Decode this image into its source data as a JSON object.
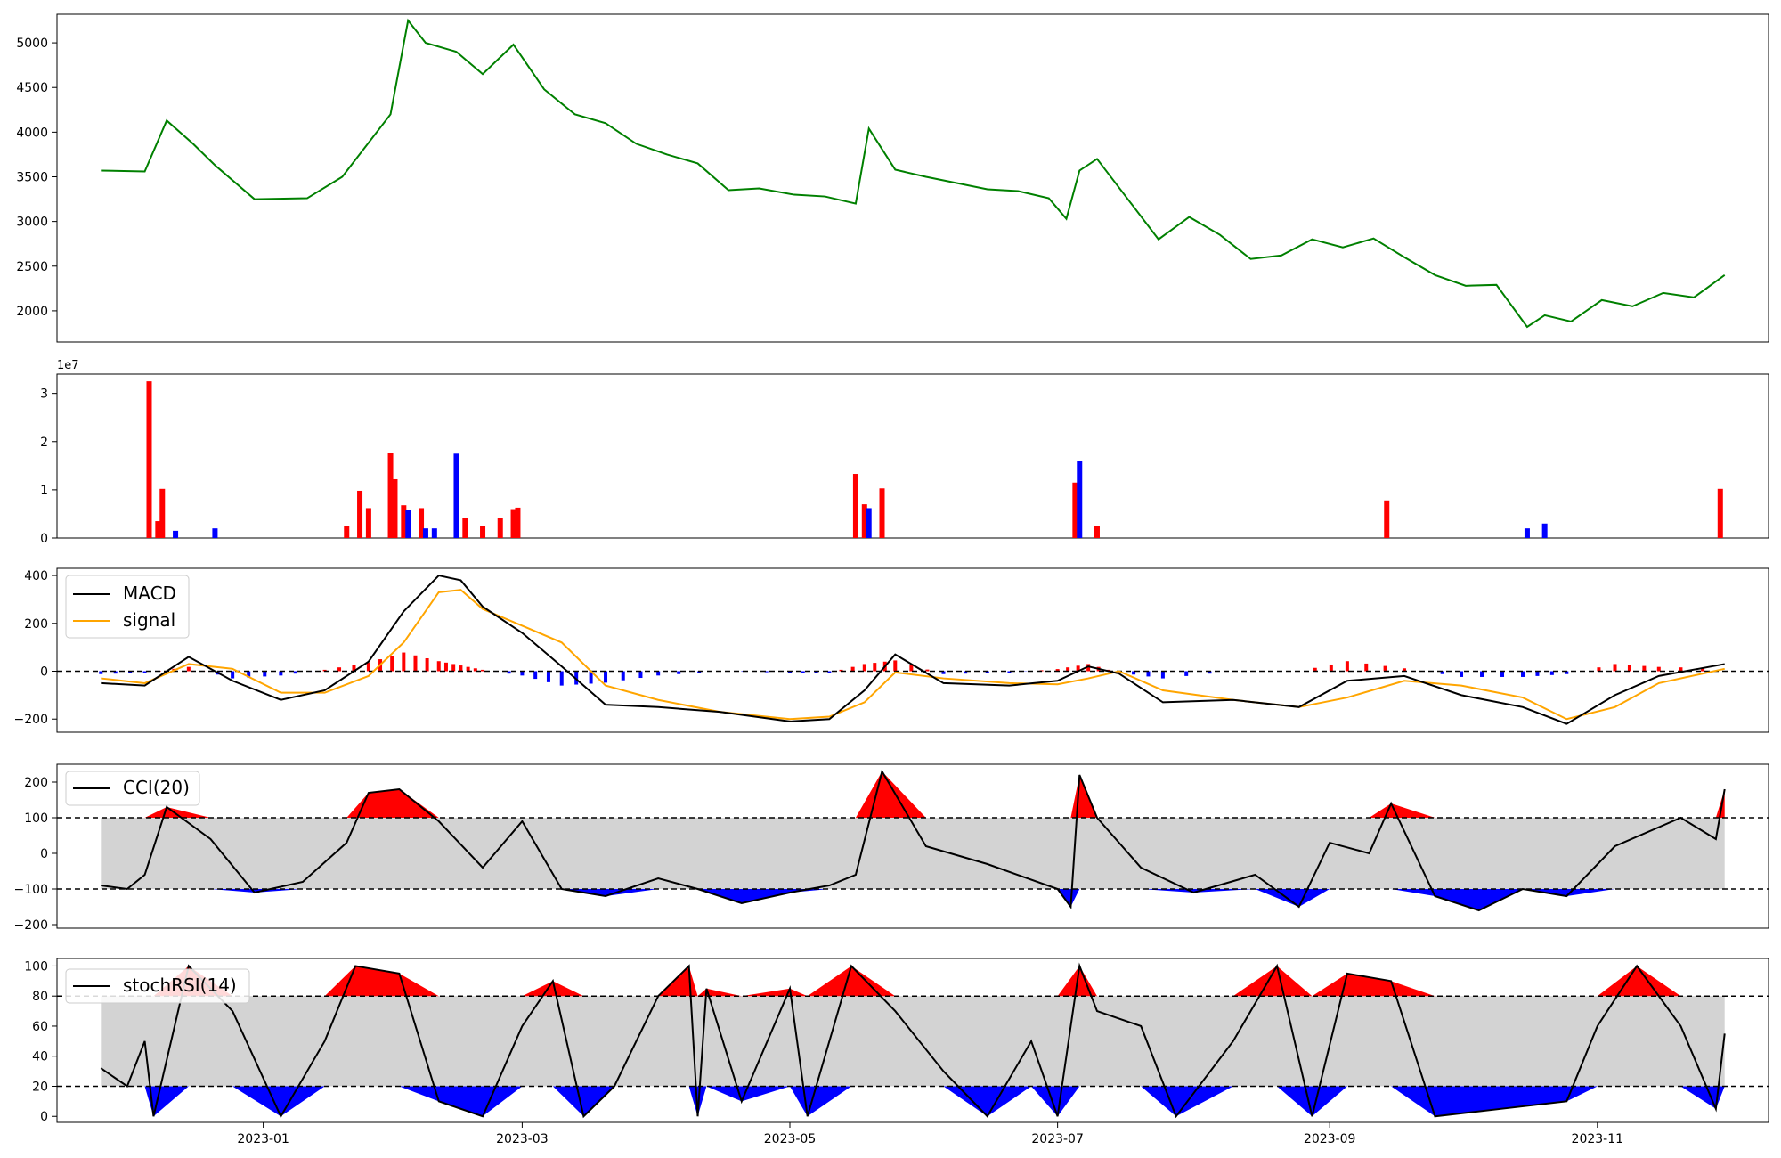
{
  "chart_data": [
    {
      "type": "line",
      "name": "price-panel",
      "ylim": [
        1650,
        5320
      ],
      "yticks": [
        2000,
        2500,
        3000,
        3500,
        4000,
        4500,
        5000
      ],
      "ytick_labels": [
        "2000",
        "2500",
        "3000",
        "3500",
        "4000",
        "4500",
        "5000"
      ],
      "x_dates": [
        "2022-11-25",
        "2022-12-05",
        "2022-12-10",
        "2022-12-16",
        "2022-12-21",
        "2022-12-30",
        "2023-01-11",
        "2023-01-19",
        "2023-01-30",
        "2023-02-03",
        "2023-02-07",
        "2023-02-14",
        "2023-02-20",
        "2023-02-27",
        "2023-03-06",
        "2023-03-13",
        "2023-03-20",
        "2023-03-27",
        "2023-04-03",
        "2023-04-10",
        "2023-04-17",
        "2023-04-24",
        "2023-05-02",
        "2023-05-09",
        "2023-05-16",
        "2023-05-19",
        "2023-05-25",
        "2023-06-01",
        "2023-06-08",
        "2023-06-15",
        "2023-06-22",
        "2023-06-29",
        "2023-07-03",
        "2023-07-06",
        "2023-07-10",
        "2023-07-17",
        "2023-07-24",
        "2023-07-31",
        "2023-08-07",
        "2023-08-14",
        "2023-08-21",
        "2023-08-28",
        "2023-09-04",
        "2023-09-11",
        "2023-09-18",
        "2023-09-25",
        "2023-10-02",
        "2023-10-09",
        "2023-10-16",
        "2023-10-20",
        "2023-10-26",
        "2023-11-02",
        "2023-11-09",
        "2023-11-16",
        "2023-11-23",
        "2023-11-30"
      ],
      "values": [
        3570,
        3560,
        4130,
        3870,
        3630,
        3250,
        3260,
        3500,
        4200,
        5250,
        5000,
        4900,
        4650,
        4980,
        4480,
        4200,
        4100,
        3870,
        3750,
        3650,
        3350,
        3370,
        3300,
        3280,
        3200,
        4040,
        3580,
        3500,
        3430,
        3360,
        3340,
        3260,
        3030,
        3570,
        3700,
        3250,
        2800,
        3050,
        2850,
        2580,
        2620,
        2800,
        2710,
        2810,
        2600,
        2400,
        2280,
        2290,
        1820,
        1950,
        1880,
        2120,
        2050,
        2200,
        2150,
        2400
      ],
      "color": "#008000"
    },
    {
      "type": "bar",
      "name": "volume-panel",
      "scale_label": "1e7",
      "ylim": [
        0,
        3.4
      ],
      "yticks": [
        0,
        1,
        2,
        3
      ],
      "ytick_labels": [
        "0",
        "1",
        "2",
        "3"
      ],
      "bars": [
        {
          "date": "2022-12-06",
          "value": 3.25,
          "color": "red"
        },
        {
          "date": "2022-12-08",
          "value": 0.35,
          "color": "red"
        },
        {
          "date": "2022-12-09",
          "value": 1.02,
          "color": "red"
        },
        {
          "date": "2022-12-12",
          "value": 0.15,
          "color": "blue"
        },
        {
          "date": "2022-12-21",
          "value": 0.2,
          "color": "blue"
        },
        {
          "date": "2023-01-20",
          "value": 0.25,
          "color": "red"
        },
        {
          "date": "2023-01-23",
          "value": 0.98,
          "color": "red"
        },
        {
          "date": "2023-01-25",
          "value": 0.62,
          "color": "red"
        },
        {
          "date": "2023-01-30",
          "value": 1.76,
          "color": "red"
        },
        {
          "date": "2023-01-31",
          "value": 1.22,
          "color": "red"
        },
        {
          "date": "2023-02-02",
          "value": 0.68,
          "color": "red"
        },
        {
          "date": "2023-02-03",
          "value": 0.58,
          "color": "blue"
        },
        {
          "date": "2023-02-06",
          "value": 0.62,
          "color": "red"
        },
        {
          "date": "2023-02-07",
          "value": 0.2,
          "color": "blue"
        },
        {
          "date": "2023-02-09",
          "value": 0.2,
          "color": "blue"
        },
        {
          "date": "2023-02-14",
          "value": 1.75,
          "color": "blue"
        },
        {
          "date": "2023-02-16",
          "value": 0.42,
          "color": "red"
        },
        {
          "date": "2023-02-20",
          "value": 0.25,
          "color": "red"
        },
        {
          "date": "2023-02-24",
          "value": 0.42,
          "color": "red"
        },
        {
          "date": "2023-02-27",
          "value": 0.6,
          "color": "red"
        },
        {
          "date": "2023-02-28",
          "value": 0.63,
          "color": "red"
        },
        {
          "date": "2023-05-16",
          "value": 1.33,
          "color": "red"
        },
        {
          "date": "2023-05-18",
          "value": 0.7,
          "color": "red"
        },
        {
          "date": "2023-05-19",
          "value": 0.62,
          "color": "blue"
        },
        {
          "date": "2023-05-22",
          "value": 1.03,
          "color": "red"
        },
        {
          "date": "2023-07-05",
          "value": 1.15,
          "color": "red"
        },
        {
          "date": "2023-07-06",
          "value": 1.6,
          "color": "blue"
        },
        {
          "date": "2023-07-10",
          "value": 0.25,
          "color": "red"
        },
        {
          "date": "2023-09-14",
          "value": 0.78,
          "color": "red"
        },
        {
          "date": "2023-10-16",
          "value": 0.2,
          "color": "blue"
        },
        {
          "date": "2023-10-20",
          "value": 0.3,
          "color": "blue"
        },
        {
          "date": "2023-11-29",
          "value": 1.02,
          "color": "red"
        }
      ]
    },
    {
      "type": "line",
      "name": "macd-panel",
      "ylim": [
        -255,
        430
      ],
      "yticks": [
        -200,
        0,
        200,
        400
      ],
      "ytick_labels": [
        "−200",
        "0",
        "200",
        "400"
      ],
      "legend": [
        {
          "label": "MACD",
          "color": "#000000"
        },
        {
          "label": "signal",
          "color": "#FFA500"
        }
      ],
      "x_dates": [
        "2022-11-25",
        "2022-12-05",
        "2022-12-15",
        "2022-12-25",
        "2023-01-05",
        "2023-01-15",
        "2023-01-25",
        "2023-02-02",
        "2023-02-10",
        "2023-02-15",
        "2023-02-20",
        "2023-03-01",
        "2023-03-10",
        "2023-03-20",
        "2023-04-01",
        "2023-04-15",
        "2023-05-01",
        "2023-05-10",
        "2023-05-18",
        "2023-05-25",
        "2023-06-05",
        "2023-06-20",
        "2023-07-01",
        "2023-07-08",
        "2023-07-15",
        "2023-07-25",
        "2023-08-10",
        "2023-08-25",
        "2023-09-05",
        "2023-09-18",
        "2023-10-01",
        "2023-10-15",
        "2023-10-25",
        "2023-11-05",
        "2023-11-15",
        "2023-11-30"
      ],
      "series": [
        {
          "name": "MACD",
          "color": "#000000",
          "values": [
            -50,
            -60,
            60,
            -40,
            -120,
            -80,
            40,
            250,
            400,
            380,
            270,
            160,
            20,
            -140,
            -150,
            -170,
            -210,
            -200,
            -80,
            70,
            -50,
            -60,
            -40,
            20,
            -10,
            -130,
            -120,
            -150,
            -40,
            -20,
            -100,
            -150,
            -220,
            -100,
            -20,
            30
          ]
        },
        {
          "name": "signal",
          "color": "#FFA500",
          "values": [
            -30,
            -50,
            30,
            10,
            -90,
            -90,
            -20,
            120,
            330,
            340,
            260,
            190,
            120,
            -60,
            -120,
            -170,
            -200,
            -190,
            -130,
            -5,
            -30,
            -50,
            -55,
            -30,
            0,
            -80,
            -120,
            -150,
            -110,
            -40,
            -60,
            -110,
            -200,
            -150,
            -50,
            10
          ]
        }
      ],
      "histogram_note": "red above 0 / blue below 0, difference MACD - signal"
    },
    {
      "type": "line",
      "name": "cci-panel",
      "ylim": [
        -210,
        250
      ],
      "yticks": [
        -200,
        -100,
        0,
        100,
        200
      ],
      "ytick_labels": [
        "−200",
        "−100",
        "0",
        "100",
        "200"
      ],
      "legend": [
        {
          "label": "CCI(20)",
          "color": "#000000"
        }
      ],
      "thresholds": [
        -100,
        100
      ],
      "x_dates": [
        "2022-11-25",
        "2022-12-01",
        "2022-12-05",
        "2022-12-10",
        "2022-12-20",
        "2022-12-30",
        "2023-01-10",
        "2023-01-20",
        "2023-01-25",
        "2023-02-01",
        "2023-02-10",
        "2023-02-20",
        "2023-03-01",
        "2023-03-10",
        "2023-03-20",
        "2023-04-01",
        "2023-04-10",
        "2023-04-20",
        "2023-05-01",
        "2023-05-10",
        "2023-05-16",
        "2023-05-22",
        "2023-06-01",
        "2023-06-15",
        "2023-07-01",
        "2023-07-04",
        "2023-07-06",
        "2023-07-10",
        "2023-07-20",
        "2023-08-01",
        "2023-08-15",
        "2023-08-25",
        "2023-09-01",
        "2023-09-10",
        "2023-09-15",
        "2023-09-25",
        "2023-10-05",
        "2023-10-15",
        "2023-10-25",
        "2023-11-05",
        "2023-11-20",
        "2023-11-28",
        "2023-11-30"
      ],
      "values": [
        -90,
        -100,
        -60,
        130,
        40,
        -110,
        -80,
        30,
        170,
        180,
        90,
        -40,
        90,
        -100,
        -120,
        -70,
        -100,
        -140,
        -110,
        -90,
        -60,
        230,
        20,
        -30,
        -100,
        -150,
        220,
        100,
        -40,
        -110,
        -60,
        -150,
        30,
        0,
        140,
        -120,
        -160,
        -100,
        -120,
        20,
        100,
        40,
        180
      ]
    },
    {
      "type": "line",
      "name": "stochrsi-panel",
      "ylim": [
        -4,
        105
      ],
      "yticks": [
        0,
        20,
        40,
        60,
        80,
        100
      ],
      "ytick_labels": [
        "0",
        "20",
        "40",
        "60",
        "80",
        "100"
      ],
      "legend": [
        {
          "label": "stochRSI(14)",
          "color": "#000000"
        }
      ],
      "thresholds": [
        20,
        80
      ],
      "x_dates": [
        "2022-11-25",
        "2022-12-01",
        "2022-12-05",
        "2022-12-07",
        "2022-12-15",
        "2022-12-25",
        "2023-01-05",
        "2023-01-15",
        "2023-01-22",
        "2023-02-01",
        "2023-02-10",
        "2023-02-20",
        "2023-03-01",
        "2023-03-08",
        "2023-03-15",
        "2023-03-22",
        "2023-04-01",
        "2023-04-08",
        "2023-04-10",
        "2023-04-12",
        "2023-04-20",
        "2023-05-01",
        "2023-05-05",
        "2023-05-15",
        "2023-05-25",
        "2023-06-05",
        "2023-06-15",
        "2023-06-25",
        "2023-07-01",
        "2023-07-06",
        "2023-07-10",
        "2023-07-20",
        "2023-07-28",
        "2023-08-10",
        "2023-08-20",
        "2023-08-28",
        "2023-09-05",
        "2023-09-15",
        "2023-09-25",
        "2023-10-10",
        "2023-10-25",
        "2023-11-01",
        "2023-11-10",
        "2023-11-20",
        "2023-11-28",
        "2023-11-30"
      ],
      "values": [
        32,
        20,
        50,
        0,
        100,
        70,
        0,
        50,
        100,
        95,
        10,
        0,
        60,
        90,
        0,
        20,
        80,
        100,
        0,
        85,
        10,
        85,
        0,
        100,
        70,
        30,
        0,
        50,
        0,
        100,
        70,
        60,
        0,
        50,
        100,
        0,
        95,
        90,
        0,
        5,
        10,
        60,
        100,
        60,
        5,
        55
      ]
    }
  ],
  "x_axis": {
    "tick_dates": [
      "2023-01-01",
      "2023-03-01",
      "2023-05-01",
      "2023-07-01",
      "2023-09-01",
      "2023-11-01"
    ],
    "tick_labels": [
      "2023-01",
      "2023-03",
      "2023-05",
      "2023-07",
      "2023-09",
      "2023-11"
    ],
    "xlim": [
      "2022-11-15",
      "2023-12-10"
    ]
  }
}
